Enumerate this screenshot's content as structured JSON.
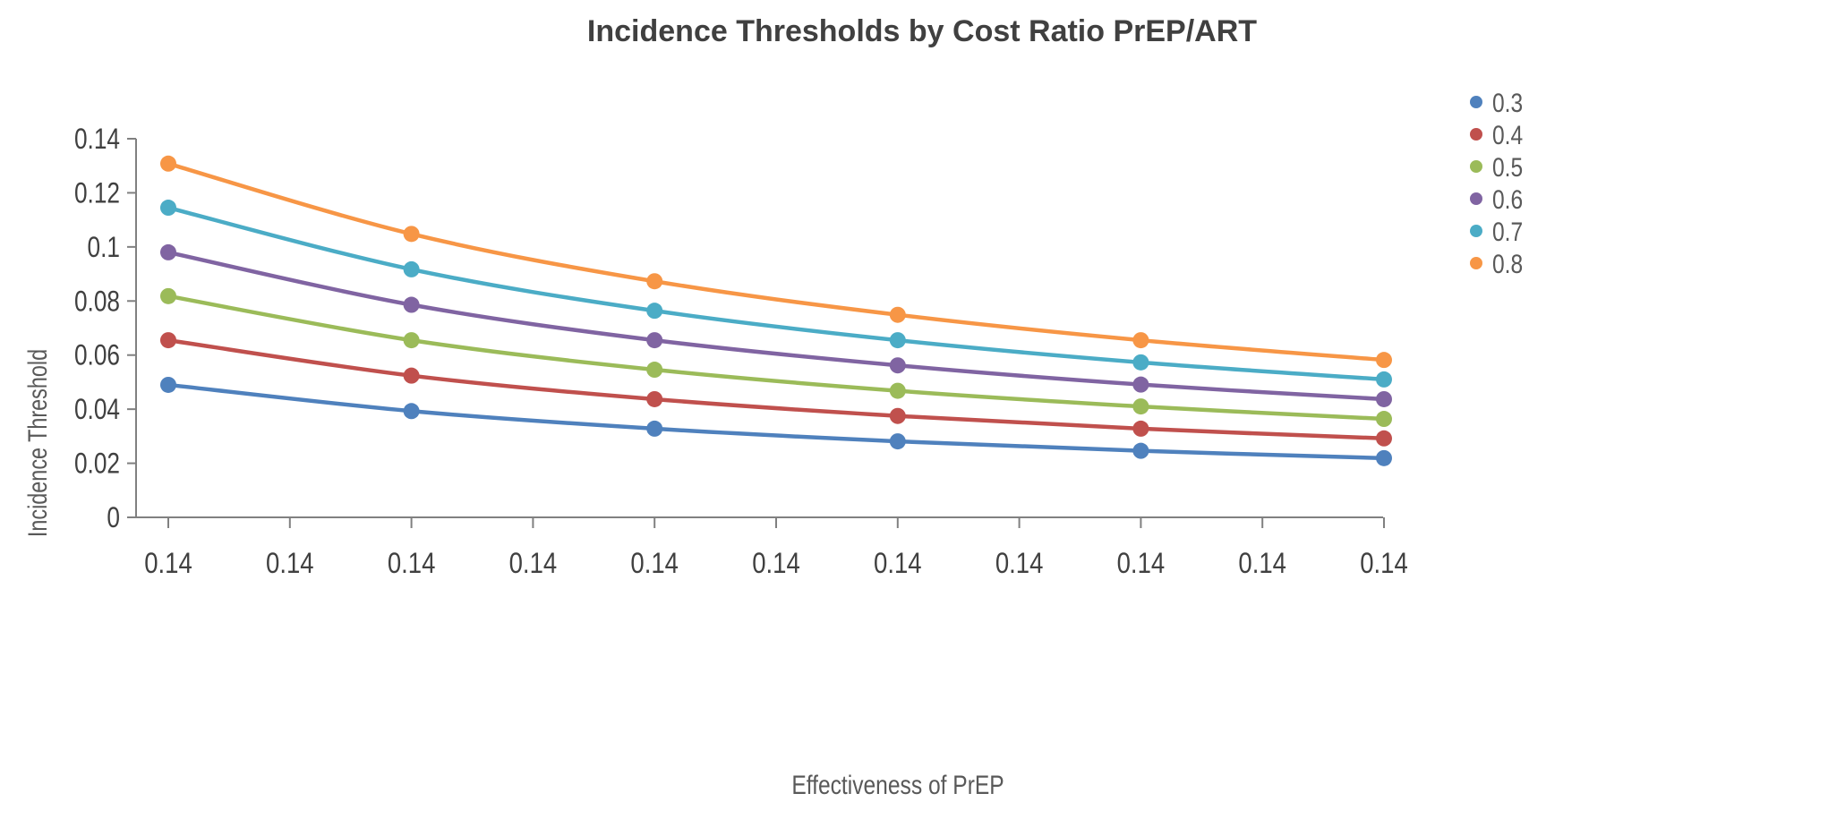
{
  "chart_data": {
    "type": "line",
    "title": "Incidence Thresholds by Cost Ratio PrEP/ART",
    "xlabel": "Effectiveness of PrEP",
    "ylabel": "Incidence Threshold",
    "x_tick_labels": [
      "0.14",
      "0.14",
      "0.14",
      "0.14",
      "0.14",
      "0.14",
      "0.14",
      "0.14",
      "0.14",
      "0.14",
      "0.14"
    ],
    "y_tick_labels": [
      "0",
      "0.02",
      "0.04",
      "0.06",
      "0.08",
      "0.1",
      "0.12",
      "0.14"
    ],
    "ylim": [
      0,
      0.14
    ],
    "y_ticks": [
      0,
      0.02,
      0.04,
      0.06,
      0.08,
      0.1,
      0.12,
      0.14
    ],
    "x_category_count": 11,
    "point_category_indices": [
      0,
      2,
      4,
      6,
      8,
      10
    ],
    "grid": false,
    "legend_position": "top-right",
    "series": [
      {
        "name": "0.3",
        "color": "#4F81BD",
        "values": [
          0.049,
          0.0393,
          0.0328,
          0.0281,
          0.0246,
          0.0219
        ]
      },
      {
        "name": "0.4",
        "color": "#C0504D",
        "values": [
          0.0655,
          0.0524,
          0.0437,
          0.0375,
          0.0328,
          0.0292
        ]
      },
      {
        "name": "0.5",
        "color": "#9BBB59",
        "values": [
          0.0818,
          0.0655,
          0.0546,
          0.0468,
          0.041,
          0.0364
        ]
      },
      {
        "name": "0.6",
        "color": "#8064A2",
        "values": [
          0.098,
          0.0786,
          0.0655,
          0.0562,
          0.0491,
          0.0437
        ]
      },
      {
        "name": "0.7",
        "color": "#4BACC6",
        "values": [
          0.1145,
          0.0917,
          0.0764,
          0.0655,
          0.0573,
          0.051
        ]
      },
      {
        "name": "0.8",
        "color": "#F79646",
        "values": [
          0.1308,
          0.1048,
          0.0873,
          0.0749,
          0.0655,
          0.0582
        ]
      }
    ]
  }
}
